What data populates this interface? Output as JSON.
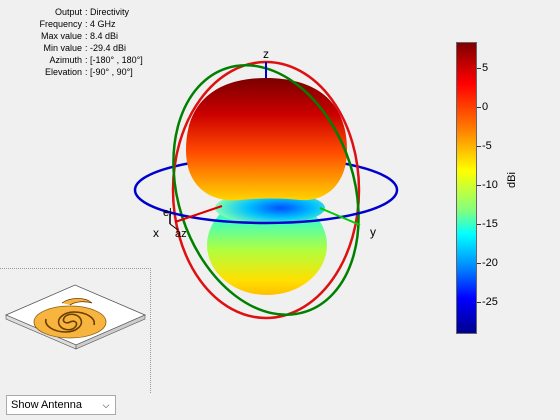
{
  "info": {
    "rows": [
      {
        "key": "Output",
        "value": ": Directivity"
      },
      {
        "key": "Frequency",
        "value": ": 4 GHz"
      },
      {
        "key": "Max value",
        "value": ": 8.4 dBi"
      },
      {
        "key": "Min value",
        "value": ": -29.4 dBi"
      },
      {
        "key": "Azimuth",
        "value": ": [-180° , 180°]"
      },
      {
        "key": "Elevation",
        "value": ": [-90° , 90°]"
      }
    ]
  },
  "axes": {
    "z": "z",
    "x": "x",
    "y": "y",
    "el": "el",
    "az": "az"
  },
  "colorbar": {
    "label": "dBi",
    "ticks": [
      "5",
      "0",
      "-5",
      "-10",
      "-15",
      "-20",
      "-25"
    ]
  },
  "control": {
    "selected": "Show Antenna"
  },
  "colors": {
    "circle_azimuth": "#0000cc",
    "circle_elevation_1": "#cc0000",
    "circle_elevation_2": "#008000"
  }
}
